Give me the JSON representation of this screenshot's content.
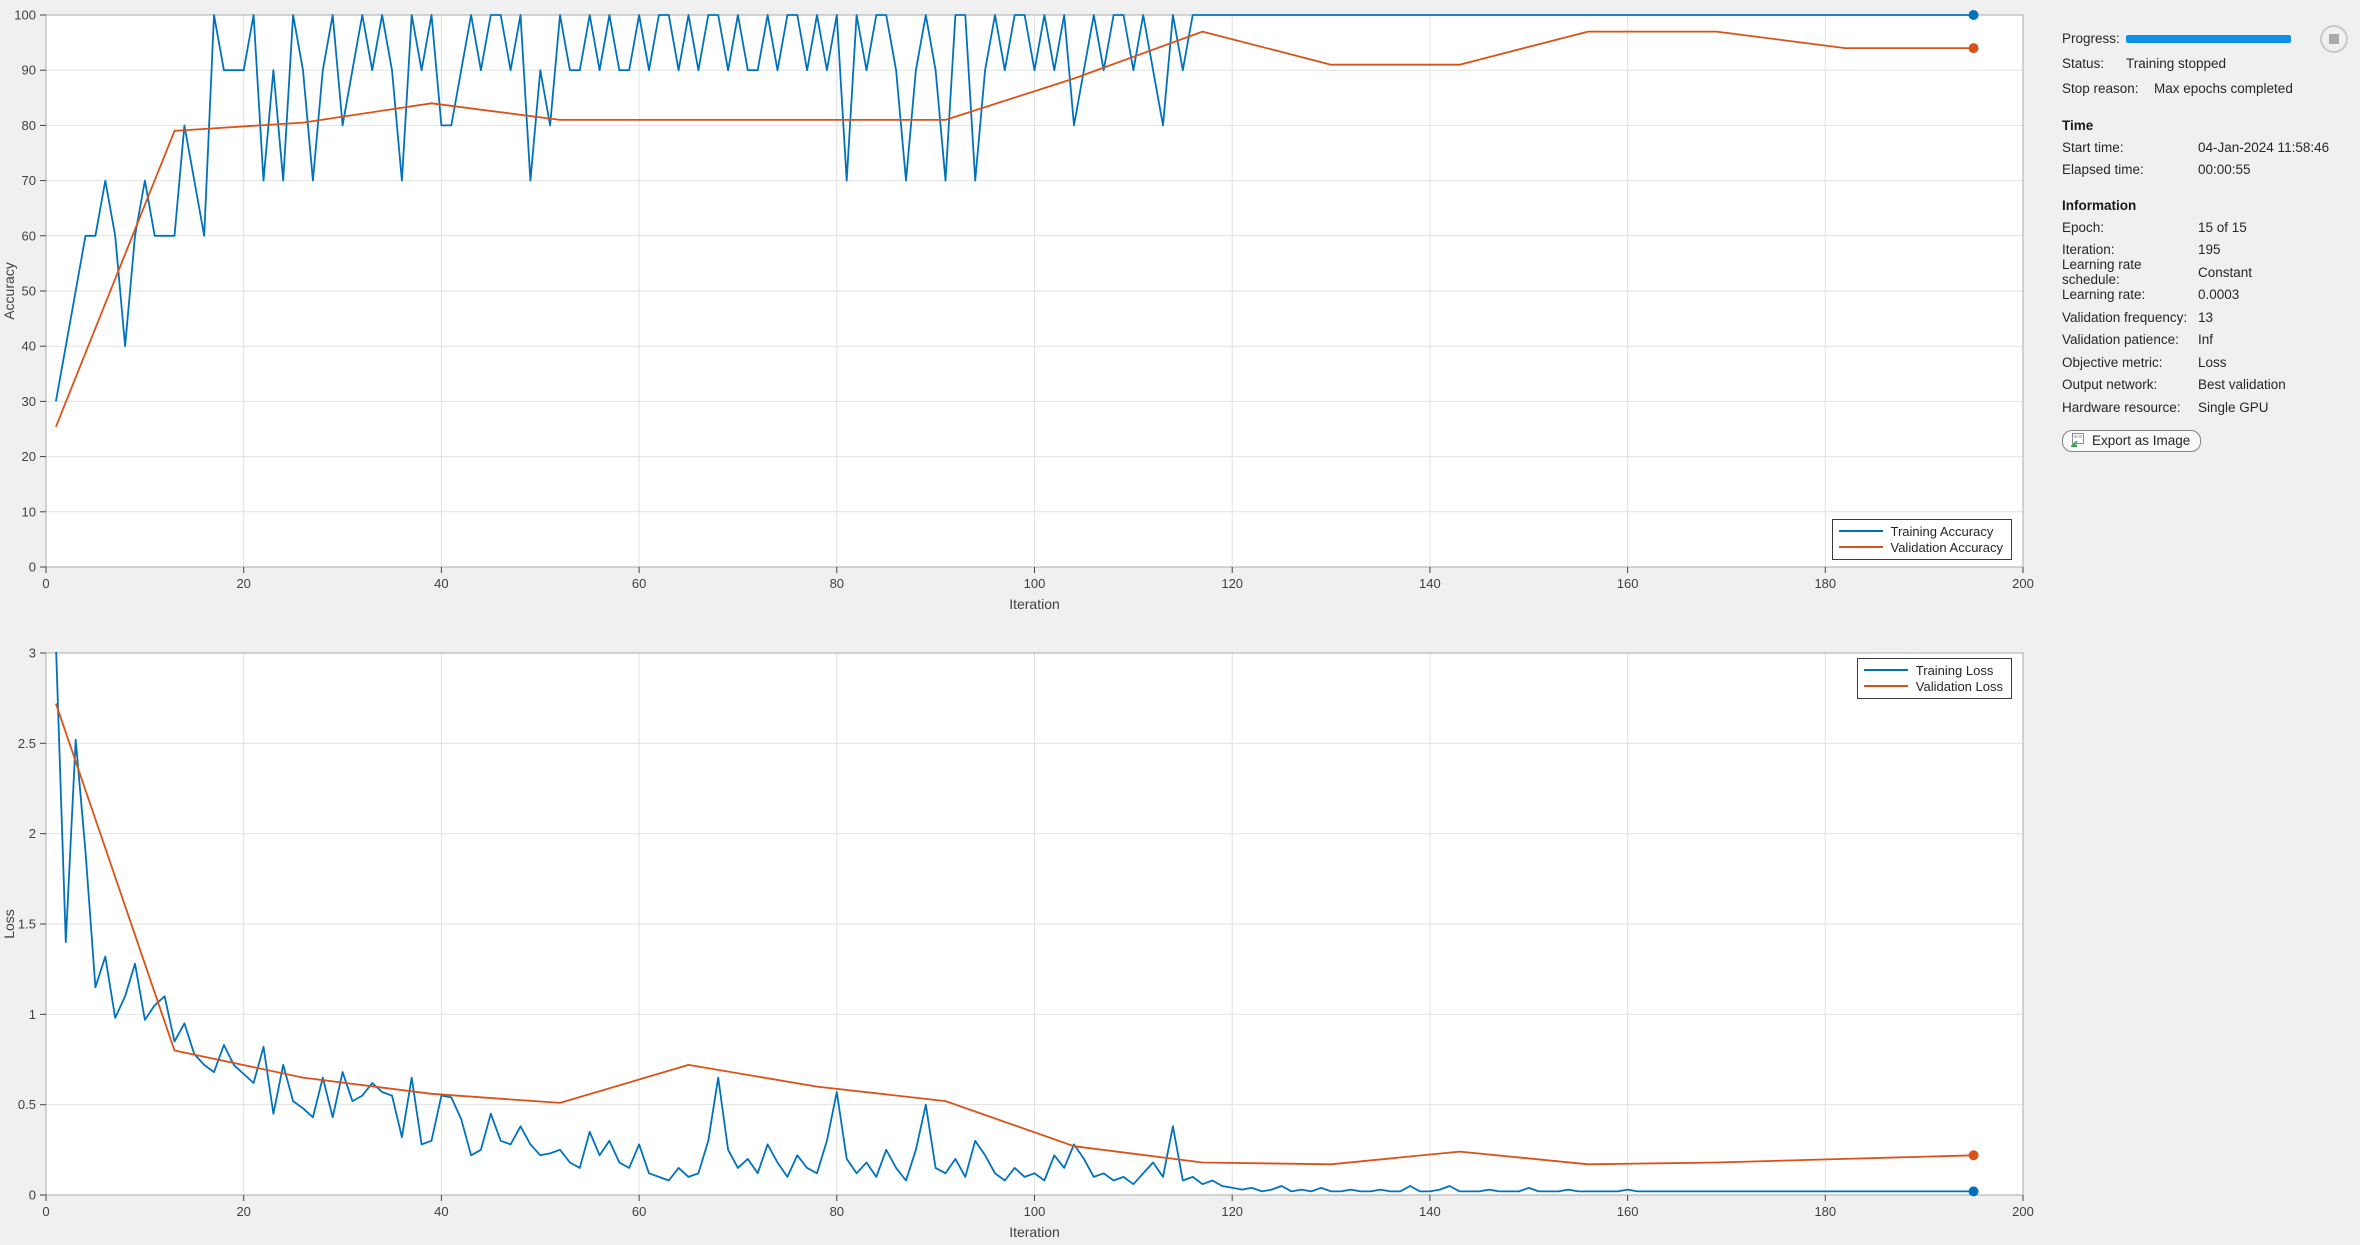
{
  "panel": {
    "progress_label": "Progress:",
    "progress_percent": 100,
    "status_label": "Status:",
    "status_value": "Training stopped",
    "stop_reason_label": "Stop reason:",
    "stop_reason_value": "Max epochs completed",
    "sections": [
      {
        "title": "Time",
        "rows": [
          [
            "Start time:",
            "04-Jan-2024 11:58:46"
          ],
          [
            "Elapsed time:",
            "00:00:55"
          ]
        ]
      },
      {
        "title": "Information",
        "rows": [
          [
            "Epoch:",
            "15 of 15"
          ],
          [
            "Iteration:",
            "195"
          ],
          [
            "Learning rate schedule:",
            "Constant"
          ],
          [
            "Learning rate:",
            "0.0003"
          ],
          [
            "Validation frequency:",
            "13"
          ],
          [
            "Validation patience:",
            "Inf"
          ],
          [
            "Objective metric:",
            "Loss"
          ],
          [
            "Output network:",
            "Best validation"
          ],
          [
            "Hardware resource:",
            "Single GPU"
          ]
        ]
      }
    ],
    "export_button_label": "Export as Image",
    "stop_button_icon": "stop-square"
  },
  "colors": {
    "training_line": "#0072BD",
    "validation_line": "#D95319",
    "progress_bar": "#0D8FE8"
  },
  "chart_data": [
    {
      "type": "line",
      "ylabel": "Accuracy",
      "xlabel": "Iteration",
      "xlim": [
        0,
        200
      ],
      "ylim": [
        0,
        100
      ],
      "xticks": [
        0,
        20,
        40,
        60,
        80,
        100,
        120,
        140,
        160,
        180,
        200
      ],
      "yticks": [
        0,
        10,
        20,
        30,
        40,
        50,
        60,
        70,
        80,
        90,
        100
      ],
      "grid": true,
      "legend_position": "bottom-right",
      "series": [
        {
          "name": "Training Accuracy",
          "color_key": "training_line",
          "x_start": 1,
          "x_step": 1,
          "end_marker": true,
          "y": [
            30,
            40,
            50,
            60,
            60,
            70,
            60,
            40,
            60,
            70,
            60,
            60,
            60,
            80,
            70,
            60,
            100,
            90,
            90,
            90,
            100,
            70,
            90,
            70,
            100,
            90,
            70,
            90,
            100,
            80,
            90,
            100,
            90,
            100,
            90,
            70,
            100,
            90,
            100,
            80,
            80,
            90,
            100,
            90,
            100,
            100,
            90,
            100,
            70,
            90,
            80,
            100,
            90,
            90,
            100,
            90,
            100,
            90,
            90,
            100,
            90,
            100,
            100,
            90,
            100,
            90,
            100,
            100,
            90,
            100,
            90,
            90,
            100,
            90,
            100,
            100,
            90,
            100,
            90,
            100,
            70,
            100,
            90,
            100,
            100,
            90,
            70,
            90,
            100,
            90,
            70,
            100,
            100,
            70,
            90,
            100,
            90,
            100,
            100,
            90,
            100,
            90,
            100,
            80,
            90,
            100,
            90,
            100,
            100,
            90,
            100,
            90,
            80,
            100,
            90,
            100,
            100,
            100,
            100,
            100,
            100,
            100,
            100,
            100,
            100,
            100,
            100,
            100,
            100,
            100,
            100,
            100,
            100,
            100,
            100,
            100,
            100,
            100,
            100,
            100,
            100,
            100,
            100,
            100,
            100,
            100,
            100,
            100,
            100,
            100,
            100,
            100,
            100,
            100,
            100,
            100,
            100,
            100,
            100,
            100,
            100,
            100,
            100,
            100,
            100,
            100,
            100,
            100,
            100,
            100,
            100,
            100,
            100,
            100,
            100,
            100,
            100,
            100,
            100,
            100,
            100,
            100,
            100,
            100,
            100,
            100,
            100,
            100,
            100,
            100,
            100,
            100,
            100,
            100,
            100
          ]
        },
        {
          "name": "Validation Accuracy",
          "color_key": "validation_line",
          "end_marker": true,
          "x": [
            1,
            13,
            26,
            39,
            52,
            65,
            78,
            91,
            104,
            117,
            130,
            143,
            156,
            169,
            182,
            195
          ],
          "y": [
            25.4,
            79,
            80.5,
            84,
            81,
            81,
            81,
            81,
            88.5,
            97,
            91,
            91,
            97,
            97,
            94,
            94
          ]
        }
      ]
    },
    {
      "type": "line",
      "ylabel": "Loss",
      "xlabel": "Iteration",
      "xlim": [
        0,
        200
      ],
      "ylim": [
        0,
        3
      ],
      "xticks": [
        0,
        20,
        40,
        60,
        80,
        100,
        120,
        140,
        160,
        180,
        200
      ],
      "yticks": [
        0,
        0.5,
        1,
        1.5,
        2,
        2.5,
        3
      ],
      "grid": true,
      "legend_position": "top-right",
      "series": [
        {
          "name": "Training Loss",
          "color_key": "training_line",
          "x_start": 1,
          "x_step": 1,
          "end_marker": true,
          "y": [
            3.05,
            1.4,
            2.52,
            1.9,
            1.15,
            1.32,
            0.98,
            1.1,
            1.28,
            0.97,
            1.05,
            1.1,
            0.85,
            0.95,
            0.78,
            0.72,
            0.68,
            0.83,
            0.72,
            0.67,
            0.62,
            0.82,
            0.45,
            0.72,
            0.52,
            0.48,
            0.43,
            0.65,
            0.43,
            0.68,
            0.52,
            0.55,
            0.62,
            0.57,
            0.55,
            0.32,
            0.65,
            0.28,
            0.3,
            0.55,
            0.54,
            0.42,
            0.22,
            0.25,
            0.45,
            0.3,
            0.28,
            0.38,
            0.28,
            0.22,
            0.23,
            0.25,
            0.18,
            0.15,
            0.35,
            0.22,
            0.3,
            0.18,
            0.15,
            0.28,
            0.12,
            0.1,
            0.08,
            0.15,
            0.1,
            0.12,
            0.3,
            0.65,
            0.25,
            0.15,
            0.2,
            0.12,
            0.28,
            0.18,
            0.1,
            0.22,
            0.15,
            0.12,
            0.3,
            0.57,
            0.2,
            0.12,
            0.18,
            0.1,
            0.25,
            0.15,
            0.08,
            0.25,
            0.5,
            0.15,
            0.12,
            0.2,
            0.1,
            0.3,
            0.22,
            0.12,
            0.08,
            0.15,
            0.1,
            0.12,
            0.08,
            0.22,
            0.15,
            0.28,
            0.2,
            0.1,
            0.12,
            0.08,
            0.1,
            0.06,
            0.12,
            0.18,
            0.1,
            0.38,
            0.08,
            0.1,
            0.06,
            0.08,
            0.05,
            0.04,
            0.03,
            0.04,
            0.02,
            0.03,
            0.05,
            0.02,
            0.03,
            0.02,
            0.04,
            0.02,
            0.02,
            0.03,
            0.02,
            0.02,
            0.03,
            0.02,
            0.02,
            0.05,
            0.02,
            0.02,
            0.03,
            0.05,
            0.02,
            0.02,
            0.02,
            0.03,
            0.02,
            0.02,
            0.02,
            0.04,
            0.02,
            0.02,
            0.02,
            0.03,
            0.02,
            0.02,
            0.02,
            0.02,
            0.02,
            0.03,
            0.02,
            0.02,
            0.02,
            0.02,
            0.02,
            0.02,
            0.02,
            0.02,
            0.02,
            0.02,
            0.02,
            0.02,
            0.02,
            0.02,
            0.02,
            0.02,
            0.02,
            0.02,
            0.02,
            0.02,
            0.02,
            0.02,
            0.02,
            0.02,
            0.02,
            0.02,
            0.02,
            0.02,
            0.02,
            0.02,
            0.02,
            0.02,
            0.02,
            0.02,
            0.02
          ]
        },
        {
          "name": "Validation Loss",
          "color_key": "validation_line",
          "end_marker": true,
          "x": [
            1,
            13,
            26,
            39,
            52,
            65,
            78,
            91,
            104,
            117,
            130,
            143,
            156,
            169,
            182,
            195
          ],
          "y": [
            2.72,
            0.8,
            0.65,
            0.56,
            0.51,
            0.72,
            0.6,
            0.52,
            0.27,
            0.18,
            0.17,
            0.24,
            0.17,
            0.18,
            0.2,
            0.22
          ]
        }
      ]
    }
  ]
}
